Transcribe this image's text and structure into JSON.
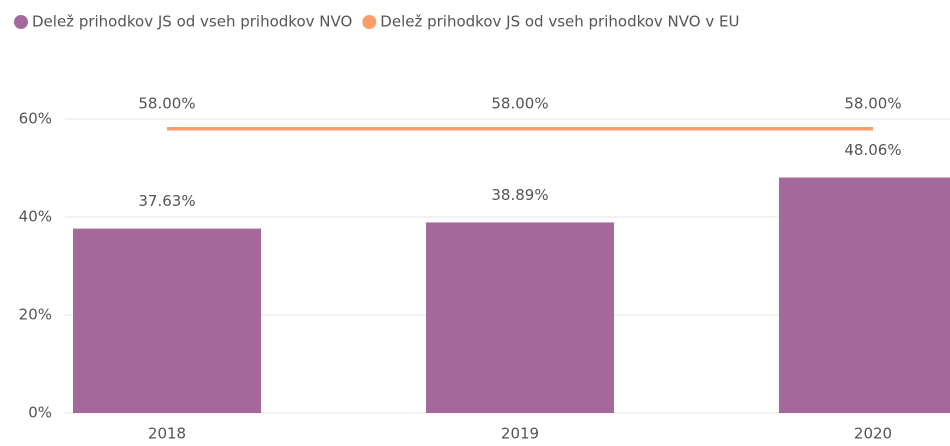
{
  "chart_data": {
    "type": "combo",
    "categories": [
      "2018",
      "2019",
      "2020"
    ],
    "series": [
      {
        "name": "Delež prihodkov JS od vseh prihodkov NVO",
        "type": "bar",
        "color": "#a4689a",
        "values": [
          37.63,
          38.89,
          48.06
        ],
        "value_labels": [
          "37.63%",
          "38.89%",
          "48.06%"
        ]
      },
      {
        "name": "Delež prihodkov JS od vseh prihodkov NVO v EU",
        "type": "line",
        "color": "#fd9c6b",
        "values": [
          58,
          58,
          58
        ],
        "value_labels": [
          "58.00%",
          "58.00%",
          "58.00%"
        ]
      }
    ],
    "ylim": [
      0,
      60
    ],
    "yticks": [
      {
        "value": 0,
        "label": "0%"
      },
      {
        "value": 20,
        "label": "20%"
      },
      {
        "value": 40,
        "label": "40%"
      },
      {
        "value": 60,
        "label": "60%"
      }
    ],
    "grid": true,
    "legend": "top-left"
  }
}
